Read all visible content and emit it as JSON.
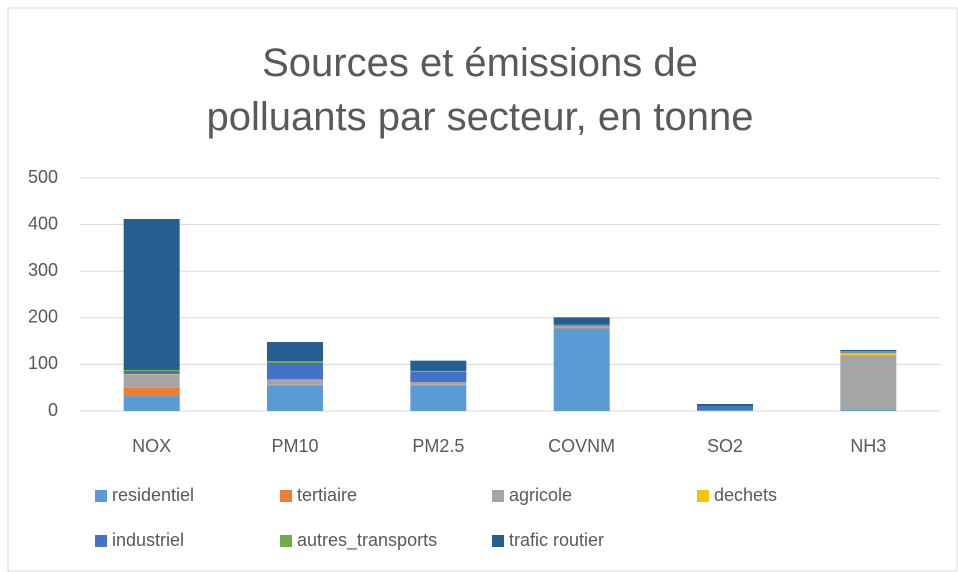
{
  "chart_data": {
    "type": "stacked_bar",
    "title": "Sources et émissions de polluants par secteur, en tonne",
    "categories": [
      "NOX",
      "PM10",
      "PM2.5",
      "COVNM",
      "SO2",
      "NH3"
    ],
    "series": [
      {
        "name": "residentiel",
        "color": "#5b9bd5",
        "values": [
          32,
          54,
          54,
          177,
          2,
          2
        ]
      },
      {
        "name": "tertiaire",
        "color": "#ed7d31",
        "values": [
          18,
          2,
          2,
          1,
          0,
          0
        ]
      },
      {
        "name": "agricole",
        "color": "#a5a5a5",
        "values": [
          28,
          12,
          6,
          4,
          0,
          118
        ]
      },
      {
        "name": "dechets",
        "color": "#ffc000",
        "values": [
          1,
          0,
          0,
          0,
          0,
          5
        ]
      },
      {
        "name": "industriel",
        "color": "#4472c4",
        "values": [
          7,
          35,
          22,
          2,
          8,
          2
        ]
      },
      {
        "name": "autres_transports",
        "color": "#70ad47",
        "values": [
          2,
          4,
          2,
          1,
          0,
          1
        ]
      },
      {
        "name": "trafic routier",
        "color": "#255e91",
        "values": [
          324,
          41,
          22,
          16,
          5,
          3
        ]
      }
    ],
    "ylim": [
      0,
      500
    ],
    "yticks": [
      0,
      100,
      200,
      300,
      400,
      500
    ],
    "grid": true,
    "legend": "bottom"
  }
}
